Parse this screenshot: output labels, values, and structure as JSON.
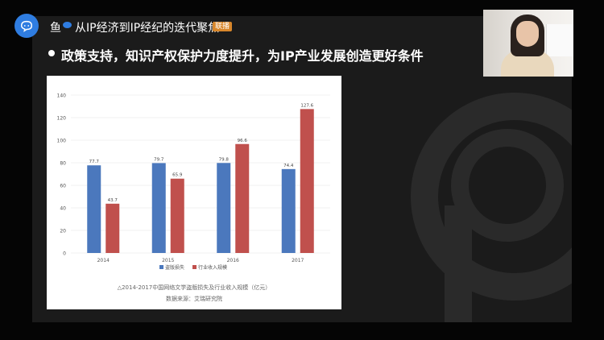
{
  "window": {
    "title_prefix": "鱼",
    "title": "从IP经济到IP经纪的迭代聚焦",
    "badge": "联播"
  },
  "slide": {
    "heading": "政策支持，知识产权保护力度提升，为IP产业发展创造更好条件"
  },
  "chart_data": {
    "type": "bar",
    "categories": [
      "2014",
      "2015",
      "2016",
      "2017"
    ],
    "series": [
      {
        "name": "盗版损失",
        "values": [
          77.7,
          79.7,
          79.8,
          74.4
        ],
        "color": "#4b78bd"
      },
      {
        "name": "行业收入规模",
        "values": [
          43.7,
          65.9,
          96.6,
          127.6
        ],
        "color": "#c0504d"
      }
    ],
    "ylim": [
      0,
      140
    ],
    "yticks": [
      0,
      20,
      40,
      60,
      80,
      100,
      120,
      140
    ],
    "legend": "bottom",
    "grid": true,
    "caption": "△2014-2017中国网络文学盗版损失及行业收入规模（亿元）",
    "source": "数据来源：艾瑞研究院"
  },
  "colors": {
    "accent": "#2f7de1",
    "badge": "#d8872b"
  },
  "icons": {
    "app": "meeting-app-icon"
  }
}
